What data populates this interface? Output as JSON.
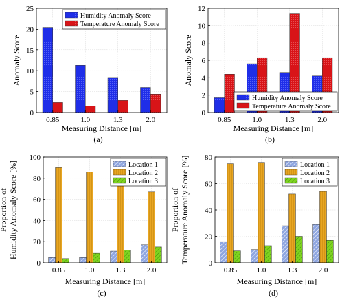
{
  "colors": {
    "humidity": "#1f2ee8",
    "temperature": "#d81418",
    "location1": "#8fa6e0",
    "location2": "#e8a623",
    "location3": "#7ed321"
  },
  "chart_data": [
    {
      "type": "bar",
      "caption": "(a)",
      "categories": [
        "0.85",
        "1.0",
        "1.3",
        "2.0"
      ],
      "xlabel": "Measuring Distance [m]",
      "ylabel": [
        "Anomaly Score"
      ],
      "ylim": [
        0,
        25
      ],
      "yticks": [
        0,
        5,
        10,
        15,
        20,
        25
      ],
      "legend_position": "top-right",
      "series": [
        {
          "name": "Humidity Anomaly Score",
          "color_key": "humidity",
          "pattern": "solid",
          "values": [
            20.3,
            11.3,
            8.4,
            6.0
          ]
        },
        {
          "name": "Temperature Anomaly Score",
          "color_key": "temperature",
          "pattern": "solid",
          "values": [
            2.4,
            1.6,
            2.9,
            4.4
          ]
        }
      ]
    },
    {
      "type": "bar",
      "caption": "(b)",
      "categories": [
        "0.85",
        "1.0",
        "1.3",
        "2.0"
      ],
      "xlabel": "Measuring Distance [m]",
      "ylabel": [
        "Anomaly Score"
      ],
      "ylim": [
        0,
        12
      ],
      "yticks": [
        0,
        2,
        4,
        6,
        8,
        10,
        12
      ],
      "legend_position": "bottom-right",
      "series": [
        {
          "name": "Humidity Anomaly Score",
          "color_key": "humidity",
          "pattern": "solid",
          "values": [
            1.7,
            5.6,
            4.6,
            4.2
          ]
        },
        {
          "name": "Temperature Anomaly Score",
          "color_key": "temperature",
          "pattern": "solid",
          "values": [
            4.4,
            6.3,
            11.4,
            6.3
          ]
        }
      ]
    },
    {
      "type": "bar",
      "caption": "(c)",
      "categories": [
        "0.85",
        "1.0",
        "1.3",
        "2.0"
      ],
      "xlabel": "Measuring Distance [m]",
      "ylabel": [
        "Proportion of",
        "Humidity Anomaly Score [%]"
      ],
      "ylim": [
        0,
        100
      ],
      "yticks": [
        0,
        20,
        40,
        60,
        80,
        100
      ],
      "legend_position": "top-right",
      "series": [
        {
          "name": "Location 1",
          "color_key": "location1",
          "pattern": "hatch",
          "values": [
            5,
            5,
            11,
            17
          ]
        },
        {
          "name": "Location 2",
          "color_key": "location2",
          "pattern": "vertical",
          "values": [
            90,
            86,
            76,
            67
          ]
        },
        {
          "name": "Location 3",
          "color_key": "location3",
          "pattern": "cross",
          "values": [
            4,
            9,
            12,
            15
          ]
        }
      ]
    },
    {
      "type": "bar",
      "caption": "(d)",
      "categories": [
        "0.85",
        "1.0",
        "1.3",
        "2.0"
      ],
      "xlabel": "Measuring Distance [m]",
      "ylabel": [
        "Proportion of",
        "Temperature Anomaly Score [%]"
      ],
      "ylim": [
        0,
        80
      ],
      "yticks": [
        0,
        20,
        40,
        60,
        80
      ],
      "legend_position": "top-right",
      "series": [
        {
          "name": "Location 1",
          "color_key": "location1",
          "pattern": "hatch",
          "values": [
            16,
            10,
            28,
            29
          ]
        },
        {
          "name": "Location 2",
          "color_key": "location2",
          "pattern": "vertical",
          "values": [
            75,
            76,
            52,
            54
          ]
        },
        {
          "name": "Location 3",
          "color_key": "location3",
          "pattern": "cross",
          "values": [
            9,
            13,
            20,
            17
          ]
        }
      ]
    }
  ]
}
